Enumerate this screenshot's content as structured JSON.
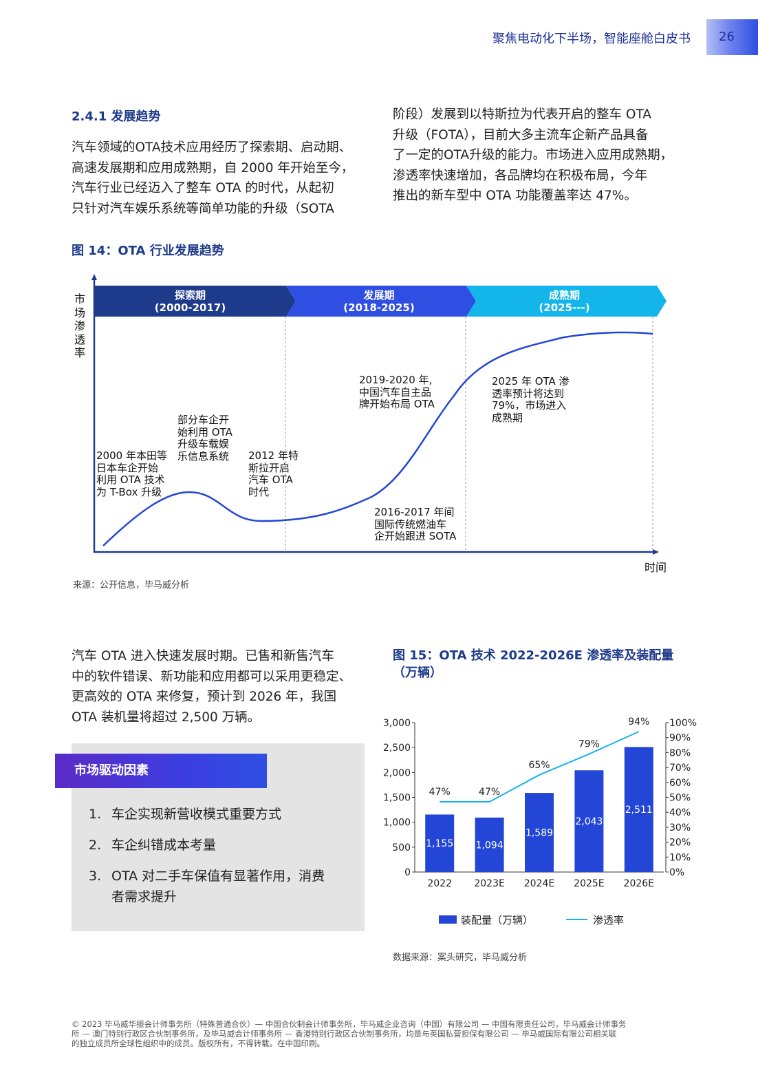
{
  "header": {
    "title": "聚焦电动化下半场，智能座舱白皮书",
    "page_number": "26"
  },
  "section": {
    "heading": "2.4.1 发展趋势",
    "left_lines": [
      "汽车领域的OTA技术应用经历了探索期、启动期、",
      "高速发展期和应用成熟期，自 2000 年开始至今，",
      "汽车行业已经迈入了整车 OTA 的时代，从起初",
      "只针对汽车娱乐系统等简单功能的升级（SOTA"
    ],
    "right_lines": [
      "阶段）发展到以特斯拉为代表开启的整车 OTA",
      "升级（FOTA），目前大多主流车企新产品具备",
      "了一定的OTA升级的能力。市场进入应用成熟期，",
      "渗透率快速增加，各品牌均在积极布局，今年",
      "推出的新车型中 OTA 功能覆盖率达 47%。"
    ]
  },
  "figure14": {
    "title": "图 14：OTA 行业发展趋势",
    "y_axis_label": [
      "市",
      "场",
      "渗",
      "透",
      "率"
    ],
    "x_axis_label": "时间",
    "phases": [
      {
        "name": "探索期",
        "period": "(2000-2017)",
        "color": "#1e3a8a"
      },
      {
        "name": "发展期",
        "period": "(2018-2025)",
        "color": "#2f4fe2"
      },
      {
        "name": "成熟期",
        "period": "(2025---)",
        "color": "#13b5ea"
      }
    ],
    "annotations": [
      [
        "2000 年本田等",
        "日本车企开始",
        "利用 OTA 技术",
        "为 T-Box 升级"
      ],
      [
        "部分车企开",
        "始利用 OTA",
        "升级车载娱",
        "乐信息系统"
      ],
      [
        "2012 年特",
        "斯拉开启",
        "汽车 OTA",
        "时代"
      ],
      [
        "2016-2017 年间",
        "国际传统燃油车",
        "企开始跟进 SOTA"
      ],
      [
        "2019-2020 年,",
        "中国汽车自主品",
        "牌开始布局 OTA"
      ],
      [
        "2025 年 OTA 渗",
        "透率预计将达到",
        "79%，市场进入",
        "成熟期"
      ]
    ],
    "source": "来源：公开信息，毕马威分析",
    "curve_color": "#2446d6"
  },
  "section2": {
    "lines": [
      "汽车 OTA 进入快速发展时期。已售和新售汽车",
      "中的软件错误、新功能和应用都可以采用更稳定、",
      "更高效的 OTA 来修复，预计到 2026 年，我国",
      "OTA 装机量将超过 2,500 万辆。"
    ]
  },
  "drivers": {
    "title": "市场驱动因素",
    "items": [
      {
        "num": "1.",
        "lines": [
          "车企实现新营收模式重要方式"
        ]
      },
      {
        "num": "2.",
        "lines": [
          "车企纠错成本考量"
        ]
      },
      {
        "num": "3.",
        "lines": [
          "OTA 对二手车保值有显著作用，消费",
          "者需求提升"
        ]
      }
    ]
  },
  "figure15": {
    "title_lines": [
      "图 15：OTA 技术 2022-2026E 渗透率及装配量",
      "（万辆）"
    ],
    "source": "数据来源：案头研究，毕马威分析"
  },
  "chart_data": {
    "type": "bar",
    "categories": [
      "2022",
      "2023E",
      "2024E",
      "2025E",
      "2026E"
    ],
    "series": [
      {
        "name": "装配量（万辆）",
        "type": "bar",
        "axis": "left",
        "color": "#2446d6",
        "values": [
          1155,
          1094,
          1589,
          2043,
          2511
        ],
        "labels": [
          "1,155",
          "1,094",
          "1,589",
          "2,043",
          "2,511"
        ]
      },
      {
        "name": "渗透率",
        "type": "line",
        "axis": "right",
        "color": "#13b5ea",
        "values": [
          47,
          47,
          65,
          79,
          94
        ],
        "labels": [
          "47%",
          "47%",
          "65%",
          "79%",
          "94%"
        ]
      }
    ],
    "y_left": {
      "ticks": [
        "3,000",
        "2,500",
        "2,000",
        "1,500",
        "1,000",
        "500",
        "0"
      ],
      "range": [
        0,
        3000
      ]
    },
    "y_right": {
      "ticks": [
        "100%",
        "90%",
        "80%",
        "70%",
        "60%",
        "50%",
        "40%",
        "30%",
        "20%",
        "10%",
        "0%"
      ],
      "range": [
        0,
        100
      ]
    },
    "legend_position": "bottom"
  },
  "footer": {
    "lines": [
      "© 2023 毕马威华振会计师事务所（特殊普通合伙）— 中国合伙制会计师事务所，毕马威企业咨询（中国）有限公司 — 中国有限责任公司，毕马威会计师事务",
      "所 — 澳门特别行政区合伙制事务所，及毕马威会计师事务所 — 香港特别行政区合伙制事务所，均是与英国私营担保有限公司 — 毕马威国际有限公司相关联",
      "的独立成员所全球性组织中的成员。版权所有，不得转载。在中国印刷。"
    ]
  }
}
